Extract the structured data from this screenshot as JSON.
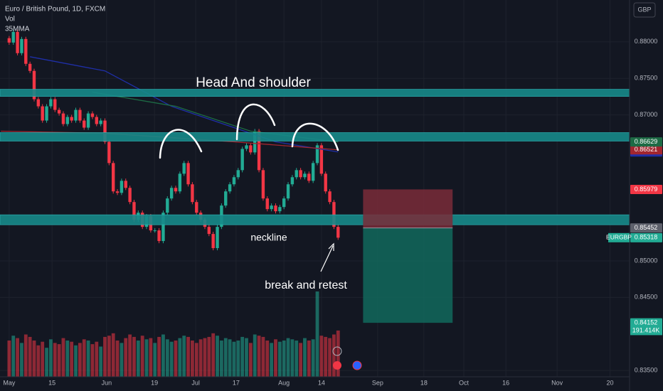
{
  "chart_data": {
    "type": "candlestick",
    "title": "Euro / British Pound, 1D, FXCM",
    "indicators": [
      "Vol",
      "35MMA"
    ],
    "currency": "GBP",
    "symbol": "EURGBP",
    "annotations": [
      "Head And shoulder",
      "neckline",
      "break and retest"
    ],
    "xlim": [
      -2.2,
      149
    ],
    "xticks": [
      {
        "value": 0,
        "label": "May"
      },
      {
        "value": 10.3,
        "label": "15"
      },
      {
        "value": 23.4,
        "label": "Jun"
      },
      {
        "value": 34.9,
        "label": "19"
      },
      {
        "value": 44.8,
        "label": "Jul"
      },
      {
        "value": 54.5,
        "label": "17"
      },
      {
        "value": 66,
        "label": "Aug"
      },
      {
        "value": 75,
        "label": "14"
      },
      {
        "value": 88.5,
        "label": "Sep"
      },
      {
        "value": 99.6,
        "label": "18"
      },
      {
        "value": 109.2,
        "label": "Oct"
      },
      {
        "value": 119.3,
        "label": "16"
      },
      {
        "value": 131.6,
        "label": "Nov"
      },
      {
        "value": 144.3,
        "label": "20"
      }
    ],
    "ylim": [
      0.83413,
      0.88573
    ],
    "yticks": [
      {
        "value": 0.835,
        "label": "0.83500"
      },
      {
        "value": 0.845,
        "label": "0.84500"
      },
      {
        "value": 0.85,
        "label": "0.85000"
      },
      {
        "value": 0.87,
        "label": "0.87000"
      },
      {
        "value": 0.875,
        "label": "0.87500"
      },
      {
        "value": 0.88,
        "label": "0.88000"
      }
    ],
    "grid": true,
    "up_color": "#22ab94",
    "down_color": "#f23645",
    "open": [
      0.8805,
      0.8799,
      0.88136,
      0.87845,
      0.88039,
      0.87699,
      0.87602,
      0.87214,
      0.87117,
      0.86922,
      0.87117,
      0.87214,
      0.87068,
      0.87019,
      0.86874,
      0.86971,
      0.86922,
      0.87068,
      0.86922,
      0.86825,
      0.87019,
      0.86971,
      0.86874,
      0.86922,
      0.86631,
      0.8634,
      0.85952,
      0.85932,
      0.86097,
      0.86,
      0.85806,
      0.85563,
      0.8566,
      0.85466,
      0.85612,
      0.85418,
      0.85418,
      0.85272,
      0.8566,
      0.85855,
      0.86,
      0.85952,
      0.86194,
      0.8634,
      0.86049,
      0.85806,
      0.8566,
      0.85563,
      0.85466,
      0.85369,
      0.85175,
      0.85466,
      0.85758,
      0.85952,
      0.86049,
      0.86146,
      0.86243,
      0.86534,
      0.86583,
      0.86486,
      0.86777,
      0.86243,
      0.85855,
      0.85709,
      0.85758,
      0.8568,
      0.85738,
      0.85855,
      0.86049,
      0.86146,
      0.86243,
      0.86146,
      0.86194,
      0.86097,
      0.8634,
      0.86583,
      0.86194,
      0.85952,
      0.85806,
      0.85466
    ],
    "high": [
      0.8808,
      0.88166,
      0.88166,
      0.88069,
      0.88069,
      0.87729,
      0.87632,
      0.87244,
      0.87147,
      0.87147,
      0.87244,
      0.87244,
      0.87098,
      0.87049,
      0.87001,
      0.87001,
      0.87098,
      0.87098,
      0.86952,
      0.87049,
      0.87049,
      0.87001,
      0.86952,
      0.86952,
      0.86661,
      0.8637,
      0.85982,
      0.86127,
      0.86127,
      0.8603,
      0.85836,
      0.8569,
      0.8569,
      0.85642,
      0.85642,
      0.85448,
      0.85448,
      0.8569,
      0.85885,
      0.8603,
      0.8603,
      0.86224,
      0.8637,
      0.8637,
      0.86079,
      0.85836,
      0.8569,
      0.85593,
      0.85496,
      0.85399,
      0.85496,
      0.85788,
      0.85982,
      0.86079,
      0.86176,
      0.86273,
      0.86564,
      0.86613,
      0.86613,
      0.86807,
      0.86807,
      0.86273,
      0.85885,
      0.85788,
      0.85788,
      0.85768,
      0.85885,
      0.86079,
      0.86176,
      0.86273,
      0.86273,
      0.86224,
      0.86224,
      0.8637,
      0.86613,
      0.86613,
      0.86224,
      0.85982,
      0.85836,
      0.85496
    ],
    "low": [
      0.8796,
      0.8796,
      0.87815,
      0.87815,
      0.87669,
      0.87572,
      0.87184,
      0.87087,
      0.86892,
      0.86892,
      0.87087,
      0.87038,
      0.86989,
      0.86844,
      0.86844,
      0.86892,
      0.86892,
      0.86892,
      0.86795,
      0.86795,
      0.86941,
      0.86844,
      0.86844,
      0.86601,
      0.8631,
      0.85922,
      0.85902,
      0.85902,
      0.8597,
      0.85776,
      0.85533,
      0.85533,
      0.85436,
      0.85436,
      0.85388,
      0.85388,
      0.85242,
      0.85242,
      0.8563,
      0.85825,
      0.85922,
      0.85922,
      0.86164,
      0.86019,
      0.85776,
      0.8563,
      0.85533,
      0.85436,
      0.85339,
      0.85145,
      0.85145,
      0.85436,
      0.85728,
      0.85922,
      0.86019,
      0.86116,
      0.86213,
      0.86504,
      0.86456,
      0.86456,
      0.86213,
      0.85825,
      0.85679,
      0.85679,
      0.8565,
      0.8565,
      0.85708,
      0.85825,
      0.86019,
      0.86116,
      0.86116,
      0.86116,
      0.86067,
      0.86067,
      0.8631,
      0.86164,
      0.85922,
      0.85776,
      0.85436,
      0.85288
    ],
    "close": [
      0.8799,
      0.88136,
      0.87845,
      0.88039,
      0.87699,
      0.87602,
      0.87214,
      0.87117,
      0.86922,
      0.87117,
      0.87214,
      0.87068,
      0.87019,
      0.86874,
      0.86971,
      0.86922,
      0.87068,
      0.86922,
      0.86825,
      0.87019,
      0.86971,
      0.86874,
      0.86922,
      0.86631,
      0.8634,
      0.85952,
      0.85932,
      0.86097,
      0.86,
      0.85806,
      0.85563,
      0.8566,
      0.85466,
      0.85612,
      0.85418,
      0.85418,
      0.85272,
      0.8566,
      0.85855,
      0.86,
      0.85952,
      0.86194,
      0.8634,
      0.86049,
      0.85806,
      0.8566,
      0.85563,
      0.85466,
      0.85369,
      0.85175,
      0.85466,
      0.85758,
      0.85952,
      0.86049,
      0.86146,
      0.86243,
      0.86534,
      0.86583,
      0.86486,
      0.86777,
      0.86243,
      0.85855,
      0.85709,
      0.85758,
      0.8568,
      0.85738,
      0.85855,
      0.86049,
      0.86146,
      0.86243,
      0.86146,
      0.86194,
      0.86097,
      0.8634,
      0.86583,
      0.86194,
      0.85952,
      0.85806,
      0.85466,
      0.85318
    ],
    "volume": {
      "ylim": [
        0,
        400
      ],
      "values": [
        150,
        170,
        160,
        140,
        175,
        165,
        150,
        130,
        145,
        120,
        155,
        140,
        135,
        160,
        150,
        145,
        130,
        140,
        155,
        150,
        135,
        145,
        125,
        165,
        170,
        180,
        150,
        140,
        160,
        175,
        165,
        150,
        170,
        155,
        160,
        140,
        165,
        175,
        155,
        145,
        150,
        160,
        170,
        165,
        150,
        140,
        155,
        160,
        165,
        180,
        170,
        150,
        160,
        155,
        145,
        150,
        165,
        160,
        140,
        175,
        170,
        165,
        150,
        140,
        155,
        145,
        150,
        160,
        155,
        150,
        140,
        160,
        150,
        155,
        353,
        170,
        165,
        160,
        175,
        191.414
      ],
      "last_label": "191.414K"
    },
    "moving_averages": [
      {
        "color": "#1f2fa8",
        "x": [
          5,
          23,
          39,
          54,
          64,
          79
        ],
        "values": [
          0.87796,
          0.87602,
          0.87117,
          0.86825,
          0.86631,
          0.86492
        ]
      },
      {
        "color": "#a3262f",
        "x": [
          -2,
          23,
          54,
          79
        ],
        "values": [
          0.86777,
          0.86748,
          0.86631,
          0.86521
        ]
      },
      {
        "color": "#1d6b45",
        "x": [
          20,
          40,
          58,
          79
        ],
        "values": [
          0.87311,
          0.87117,
          0.86777,
          0.86629
        ]
      }
    ],
    "zones": [
      {
        "from": 0.87253,
        "to": 0.8735
      },
      {
        "from": 0.86641,
        "to": 0.86757
      },
      {
        "from": 0.85495,
        "to": 0.85631
      }
    ],
    "position": {
      "x": [
        85,
        106.5
      ],
      "entry": 0.85452,
      "stop": 0.85979,
      "target": 0.84152,
      "stop_color": "#7a2c38",
      "target_color": "#12695c"
    }
  }
}
